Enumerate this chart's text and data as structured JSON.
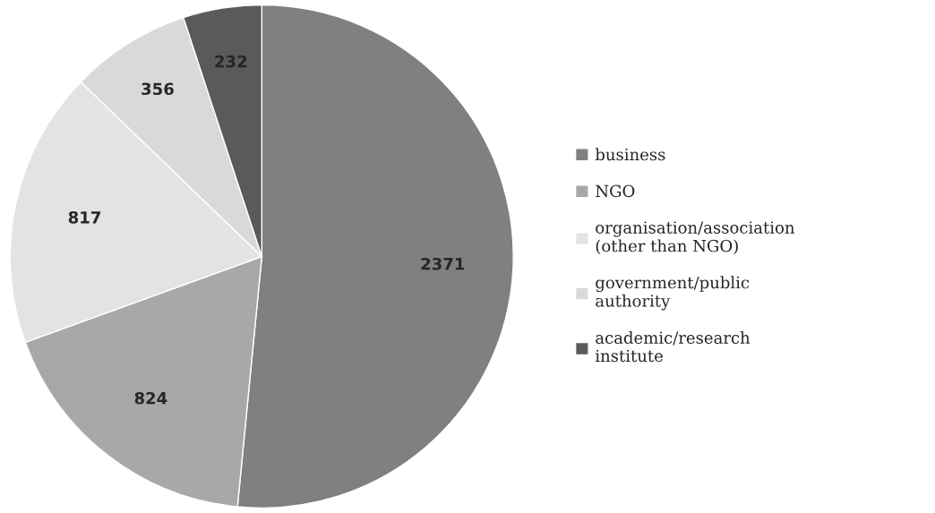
{
  "chart_data": {
    "type": "pie",
    "categories": [
      "business",
      "NGO",
      "organisation/association\n(other than NGO)",
      "government/public\nauthority",
      "academic/research\ninstitute"
    ],
    "values": [
      2371,
      824,
      817,
      356,
      232
    ],
    "colors": [
      "#808080",
      "#a8a8a8",
      "#e3e3e3",
      "#d9d9d9",
      "#5a5a5a"
    ],
    "data_labels": true,
    "legend": "right"
  }
}
